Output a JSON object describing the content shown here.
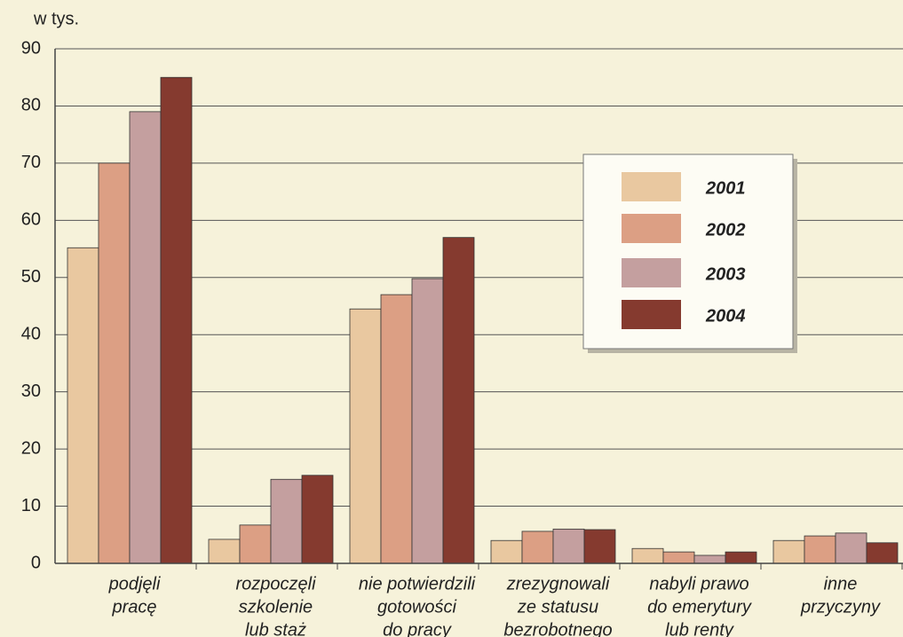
{
  "chart_data": {
    "type": "bar",
    "y_label": "w tys.",
    "categories": [
      [
        "podjęli",
        "pracę"
      ],
      [
        "rozpoczęli",
        "szkolenie",
        "lub staż"
      ],
      [
        "nie potwierdzili",
        "gotowości",
        "do pracy"
      ],
      [
        "zrezygnowali",
        "ze statusu",
        "bezrobotnego"
      ],
      [
        "nabyli prawo",
        "do emerytury",
        "lub renty"
      ],
      [
        "inne",
        "przyczyny"
      ]
    ],
    "series": [
      {
        "name": "2001",
        "color": "#e9c8a0",
        "values": [
          55.2,
          4.2,
          44.5,
          4.0,
          2.6,
          4.0
        ]
      },
      {
        "name": "2002",
        "color": "#dc9f84",
        "values": [
          70,
          6.7,
          47,
          5.6,
          2.0,
          4.8
        ]
      },
      {
        "name": "2003",
        "color": "#c49f9f",
        "values": [
          79,
          14.7,
          49.8,
          6.0,
          1.4,
          5.3
        ]
      },
      {
        "name": "2004",
        "color": "#853a2f",
        "values": [
          85,
          15.4,
          57,
          5.9,
          2.0,
          3.6
        ]
      }
    ],
    "ylim": [
      0,
      90
    ],
    "yticks": [
      0,
      10,
      20,
      30,
      40,
      50,
      60,
      70,
      80,
      90
    ],
    "grid": true
  }
}
